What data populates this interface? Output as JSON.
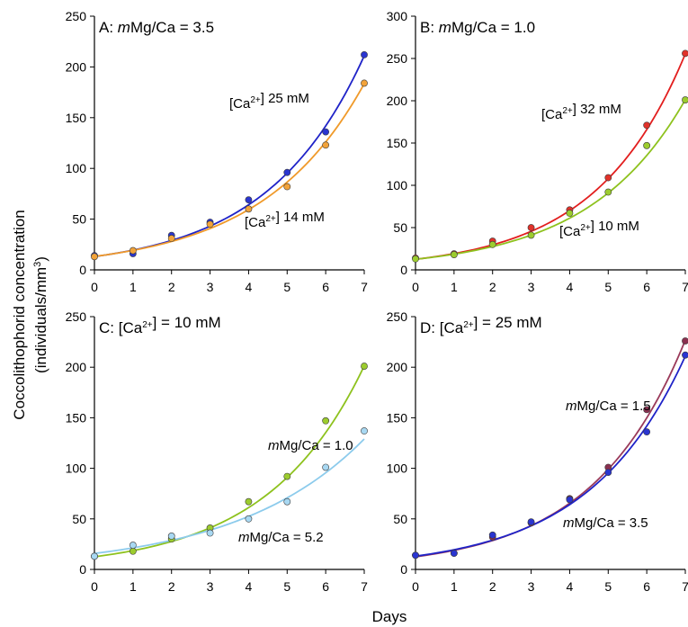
{
  "figure": {
    "ylabel_line1": "Coccolithophorid concentration",
    "ylabel_line2": "(individuals/mm",
    "ylabel_sup": "3",
    "ylabel_close": ")",
    "xlabel": "Days"
  },
  "chart_data": [
    {
      "type": "scatter",
      "title": [
        {
          "t": "A: "
        },
        {
          "t": "m",
          "i": true
        },
        {
          "t": "Mg/Ca = 3.5"
        }
      ],
      "xlim": [
        0,
        7
      ],
      "ylim": [
        0,
        250
      ],
      "xticks": [
        0,
        1,
        2,
        3,
        4,
        5,
        6,
        7
      ],
      "yticks": [
        0,
        50,
        100,
        150,
        200,
        250
      ],
      "series": [
        {
          "name": [
            {
              "t": "[Ca"
            },
            {
              "t": "2+",
              "sup": true
            },
            {
              "t": "] 25 mM"
            }
          ],
          "color": "#1f23c8",
          "marker": "#2a35d0",
          "x": [
            0,
            1,
            2,
            3,
            4,
            5,
            6,
            7
          ],
          "y": [
            14,
            16,
            34,
            47,
            69,
            96,
            136,
            212
          ],
          "fit": {
            "a": 13.1,
            "b": 0.397
          }
        },
        {
          "name": [
            {
              "t": "[Ca"
            },
            {
              "t": "2+",
              "sup": true
            },
            {
              "t": "] 14 mM"
            }
          ],
          "color": "#f09a2a",
          "marker": "#f2a33a",
          "x": [
            0,
            1,
            2,
            3,
            4,
            5,
            6,
            7
          ],
          "y": [
            13,
            19,
            31,
            45,
            60,
            82,
            123,
            184
          ],
          "fit": {
            "a": 13.2,
            "b": 0.376
          }
        }
      ]
    },
    {
      "type": "scatter",
      "title": [
        {
          "t": "B: "
        },
        {
          "t": "m",
          "i": true
        },
        {
          "t": "Mg/Ca = 1.0"
        }
      ],
      "xlim": [
        0,
        7
      ],
      "ylim": [
        0,
        300
      ],
      "xticks": [
        0,
        1,
        2,
        3,
        4,
        5,
        6,
        7
      ],
      "yticks": [
        0,
        50,
        100,
        150,
        200,
        250,
        300
      ],
      "series": [
        {
          "name": [
            {
              "t": "[Ca"
            },
            {
              "t": "2+",
              "sup": true
            },
            {
              "t": "] 32 mM"
            }
          ],
          "color": "#e21e1e",
          "marker": "#e0322a",
          "x": [
            0,
            1,
            2,
            3,
            4,
            5,
            6,
            7
          ],
          "y": [
            14,
            19,
            34,
            50,
            71,
            109,
            171,
            256
          ],
          "fit": {
            "a": 12.5,
            "b": 0.431
          }
        },
        {
          "name": [
            {
              "t": "[Ca"
            },
            {
              "t": "2+",
              "sup": true
            },
            {
              "t": "] 10 mM"
            }
          ],
          "color": "#8ec21e",
          "marker": "#9ccc2e",
          "x": [
            0,
            1,
            2,
            3,
            4,
            5,
            6,
            7
          ],
          "y": [
            13,
            18,
            30,
            41,
            67,
            92,
            147,
            201
          ],
          "fit": {
            "a": 12.5,
            "b": 0.397
          }
        }
      ]
    },
    {
      "type": "scatter",
      "title": [
        {
          "t": "C: [Ca"
        },
        {
          "t": "2+",
          "sup": true
        },
        {
          "t": "] = 10 mM"
        }
      ],
      "xlim": [
        0,
        7
      ],
      "ylim": [
        0,
        250
      ],
      "xticks": [
        0,
        1,
        2,
        3,
        4,
        5,
        6,
        7
      ],
      "yticks": [
        0,
        50,
        100,
        150,
        200,
        250
      ],
      "series": [
        {
          "name": [
            {
              "t": "m",
              "i": true
            },
            {
              "t": "Mg/Ca = 1.0"
            }
          ],
          "color": "#8ec21e",
          "marker": "#9ccc2e",
          "x": [
            0,
            1,
            2,
            3,
            4,
            5,
            6,
            7
          ],
          "y": [
            13,
            18,
            30,
            41,
            67,
            92,
            147,
            201
          ],
          "fit": {
            "a": 12.5,
            "b": 0.397
          }
        },
        {
          "name": [
            {
              "t": "m",
              "i": true
            },
            {
              "t": "Mg/Ca = 5.2"
            }
          ],
          "color": "#8ccbec",
          "marker": "#a8d8f2",
          "x": [
            0,
            1,
            2,
            3,
            4,
            5,
            6,
            7
          ],
          "y": [
            13,
            24,
            33,
            36,
            50,
            67,
            101,
            137
          ],
          "fit": {
            "a": 15.8,
            "b": 0.3
          }
        }
      ]
    },
    {
      "type": "scatter",
      "title": [
        {
          "t": "D: [Ca"
        },
        {
          "t": "2+",
          "sup": true
        },
        {
          "t": "] = 25 mM"
        }
      ],
      "xlim": [
        0,
        7
      ],
      "ylim": [
        0,
        250
      ],
      "xticks": [
        0,
        1,
        2,
        3,
        4,
        5,
        6,
        7
      ],
      "yticks": [
        0,
        50,
        100,
        150,
        200,
        250
      ],
      "series": [
        {
          "name": [
            {
              "t": "m",
              "i": true
            },
            {
              "t": "Mg/Ca = 1.5"
            }
          ],
          "color": "#9a3a5a",
          "marker": "#8a3050",
          "x": [
            0,
            1,
            2,
            3,
            4,
            5,
            6,
            7
          ],
          "y": [
            14,
            16,
            32,
            46,
            70,
            101,
            158,
            226
          ],
          "fit": {
            "a": 12.5,
            "b": 0.414
          }
        },
        {
          "name": [
            {
              "t": "m",
              "i": true
            },
            {
              "t": "Mg/Ca = 3.5"
            }
          ],
          "color": "#1f23c8",
          "marker": "#2a35d0",
          "x": [
            0,
            1,
            2,
            3,
            4,
            5,
            6,
            7
          ],
          "y": [
            14,
            16,
            34,
            47,
            69,
            96,
            136,
            212
          ],
          "fit": {
            "a": 13.1,
            "b": 0.397
          }
        }
      ]
    }
  ]
}
